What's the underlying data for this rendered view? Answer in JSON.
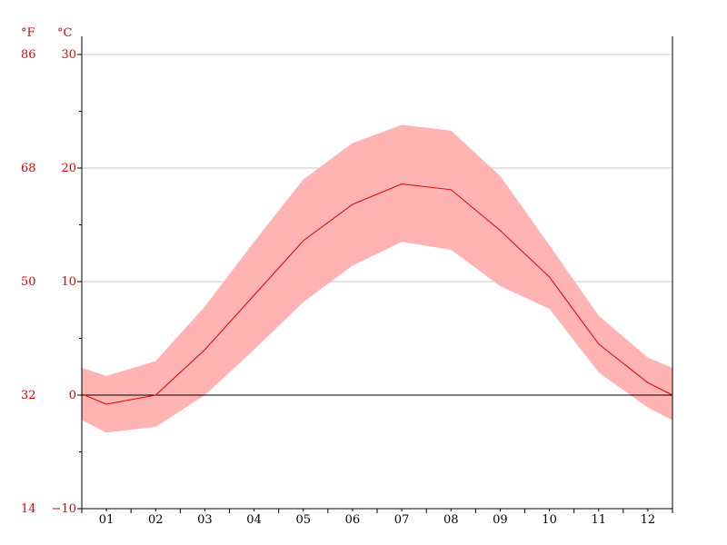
{
  "chart_data": {
    "type": "area",
    "categories": [
      "01",
      "02",
      "03",
      "04",
      "05",
      "06",
      "07",
      "08",
      "09",
      "10",
      "11",
      "12"
    ],
    "series": [
      {
        "role": "band-upper",
        "values": [
          1.7,
          3.0,
          7.8,
          13.5,
          19.0,
          22.2,
          23.8,
          23.3,
          19.3,
          13.2,
          7.0,
          3.3
        ]
      },
      {
        "role": "mean-line",
        "values": [
          -0.8,
          0.0,
          4.0,
          8.8,
          13.6,
          16.8,
          18.6,
          18.1,
          14.5,
          10.4,
          4.5,
          1.1
        ]
      },
      {
        "role": "band-lower",
        "values": [
          -3.3,
          -2.8,
          0.0,
          4.0,
          8.2,
          11.4,
          13.5,
          12.8,
          9.6,
          7.6,
          2.0,
          -1.1
        ]
      }
    ],
    "edge_values": {
      "start": {
        "upper": 2.4,
        "mean": 0.1,
        "lower": -2.2
      },
      "end": {
        "upper": 2.4,
        "mean": 0.0,
        "lower": -2.2
      }
    },
    "y_axis_left_unit_f": "°F",
    "y_axis_left_unit_c": "°C",
    "ylim": [
      -10,
      30
    ],
    "y_ticks_c": [
      "30",
      "20",
      "10",
      "0",
      "−10"
    ],
    "y_ticks_f": [
      "86",
      "68",
      "50",
      "32",
      "14"
    ],
    "title": "",
    "xlabel": "",
    "ylabel": "",
    "grid": true,
    "legend": "none",
    "colors": {
      "band": "#ffb3b3",
      "mean_line": "#e30000",
      "axis_text_temp": "#e30000",
      "axis_text_months": "#000000",
      "zero_line": "#000000",
      "grid": "#c8c8c8"
    }
  }
}
